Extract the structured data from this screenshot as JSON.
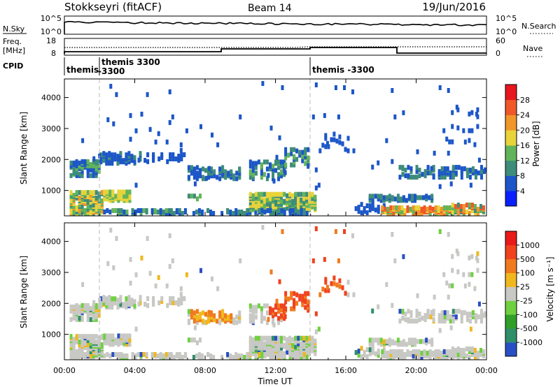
{
  "header": {
    "title": "Stokkseyri (fitACF)",
    "beam": "Beam 14",
    "date": "19/Jun/2016"
  },
  "noise_panel": {
    "left_label": "N.Sky",
    "right_label": "N.Search",
    "left_ticks": [
      "10^5",
      "10^0"
    ],
    "right_ticks": [
      "10^5",
      "10^0"
    ]
  },
  "freq_panel": {
    "left_label_1": "Freq.",
    "left_label_2": "[MHz]",
    "left_ticks": [
      "18",
      "8"
    ],
    "right_label": "Nave",
    "right_ticks": [
      "60",
      "0"
    ]
  },
  "cpid_panel": {
    "label": "CPID",
    "segments": [
      {
        "start_hour": 0.0,
        "line1": "themis",
        "line2": ""
      },
      {
        "start_hour": 2.0,
        "line1": "themis 3300",
        "line2": "-3300"
      },
      {
        "start_hour": 14.0,
        "line1": "themis -3300",
        "line2": ""
      }
    ]
  },
  "chart_data": [
    {
      "type": "heatmap",
      "name": "Power",
      "ylabel": "Slant Range [km]",
      "ylim": [
        180,
        4600
      ],
      "yticks": [
        1000,
        2000,
        3000,
        4000
      ],
      "xlim": [
        0,
        24
      ],
      "colorbar": {
        "label": "Power [dB]",
        "ticks": [
          "4",
          "8",
          "12",
          "16",
          "20",
          "24",
          "28"
        ],
        "colors": [
          "#0a20ff",
          "#1c56c8",
          "#3e8c7a",
          "#62b45a",
          "#e9d33a",
          "#f0962a",
          "#f0582a",
          "#e6171f"
        ]
      }
    },
    {
      "type": "heatmap",
      "name": "Velocity",
      "ylabel": "Slant Range [km]",
      "ylim": [
        180,
        4600
      ],
      "yticks": [
        1000,
        2000,
        3000,
        4000
      ],
      "xlim": [
        0,
        24
      ],
      "xticks": [
        "00:00",
        "04:00",
        "08:00",
        "12:00",
        "16:00",
        "20:00",
        "00:00"
      ],
      "xlabel": "Time UT",
      "colorbar": {
        "label": "Velocity [m s⁻¹]",
        "ticks": [
          "1000",
          "500",
          "100",
          "25",
          "-25",
          "-100",
          "-500",
          "-1000"
        ],
        "colors": [
          "#2a4fc4",
          "#2f8f6a",
          "#2f9f2a",
          "#6fd040",
          "#c8c8c4",
          "#f0b81e",
          "#f07a1e",
          "#f0421e",
          "#e81a1a"
        ]
      }
    }
  ]
}
